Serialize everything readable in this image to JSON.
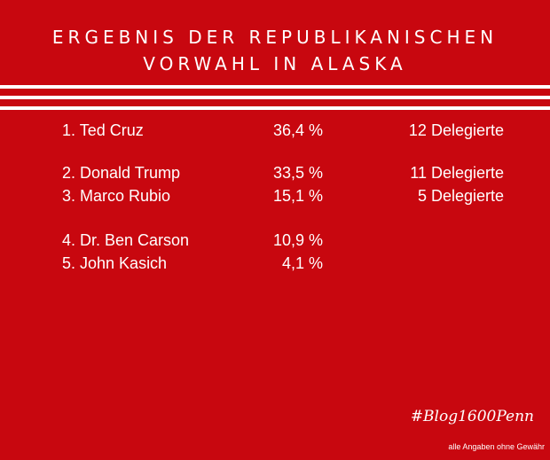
{
  "header": {
    "title_line1": "ERGEBNIS DER REPUBLIKANISCHEN",
    "title_line2": "VORWAHL IN ALASKA"
  },
  "results": [
    {
      "rank_name": "1.  Ted Cruz",
      "percent": "36,4 %",
      "delegates": "12 Delegierte"
    },
    {
      "rank_name": "2.  Donald Trump",
      "percent": "33,5 %",
      "delegates": "11 Delegierte"
    },
    {
      "rank_name": "3.  Marco Rubio",
      "percent": "15,1 %",
      "delegates": "5 Delegierte"
    },
    {
      "rank_name": "4.  Dr. Ben Carson",
      "percent": "10,9 %",
      "delegates": ""
    },
    {
      "rank_name": "5.  John Kasich",
      "percent": "4,1 %",
      "delegates": ""
    }
  ],
  "footer": {
    "hashtag": "#Blog1600Penn",
    "disclaimer": "alle Angaben ohne Gewähr"
  },
  "colors": {
    "background": "#c8070f",
    "text": "#ffffff"
  }
}
